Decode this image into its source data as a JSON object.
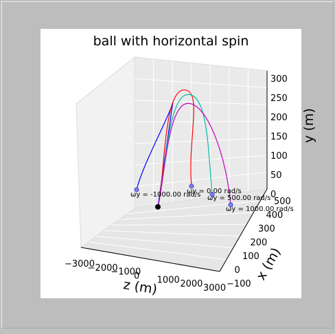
{
  "chart_data": {
    "type": "line",
    "projection": "3d",
    "title": "ball with horizontal spin",
    "xlabel": "z (m)",
    "ylabel": "x (m)",
    "zlabel": "y (m)",
    "z_axis_ticks": [
      "−3000",
      "−2000",
      "−1000",
      "0",
      "1000",
      "2000",
      "3000"
    ],
    "x_axis_ticks": [
      "−100",
      "0",
      "100",
      "200",
      "300",
      "400",
      "500"
    ],
    "y_axis_ticks": [
      "0",
      "50",
      "100",
      "150",
      "200",
      "250",
      "300"
    ],
    "grid": true,
    "series": [
      {
        "name": "ωy = -1000.00 rad/s",
        "color": "#0000ff",
        "apex_y": 240
      },
      {
        "name": "ωy = 0.00 rad/s",
        "color": "#ff0000",
        "apex_y": 270
      },
      {
        "name": "ωy = 500.00 rad/s",
        "color": "#00bfa0",
        "apex_y": 258
      },
      {
        "name": "ωy = 1000.00 rad/s",
        "color": "#bf00bf",
        "apex_y": 235
      }
    ]
  }
}
